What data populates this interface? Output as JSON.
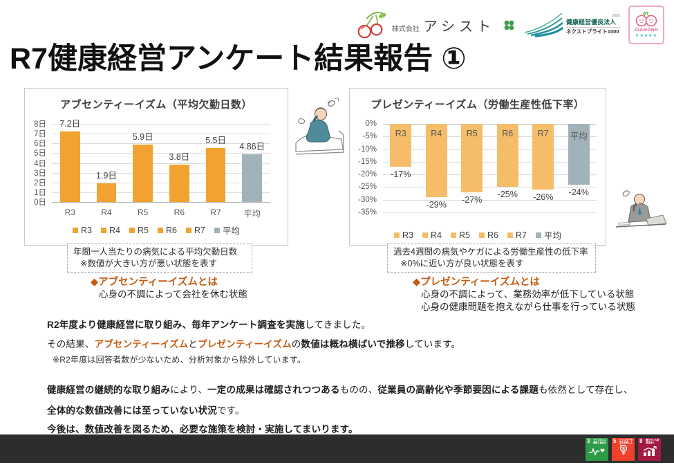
{
  "page": {
    "title": "R7健康経営アンケート結果報告 ①"
  },
  "logos": {
    "company_prefix": "株式会社",
    "company_name": "アシスト",
    "cert_year": "2025",
    "cert_name": "健康経営優良法人",
    "cert_sub": "ネクストブライト1000",
    "diamond_label": "DIAMOND",
    "diamond_stars": "★★★★★"
  },
  "chart_data": [
    {
      "type": "bar",
      "title": "アブセンティーイズム（平均欠勤日数）",
      "categories": [
        "R3",
        "R4",
        "R5",
        "R6",
        "R7",
        "平均"
      ],
      "values": [
        7.2,
        1.9,
        5.9,
        3.8,
        5.5,
        4.86
      ],
      "labels": [
        "7.2日",
        "1.9日",
        "5.9日",
        "3.8日",
        "5.5日",
        "4.86日"
      ],
      "ymin": 0,
      "ymax": 8,
      "yticks": [
        "8日",
        "7日",
        "6日",
        "5日",
        "4日",
        "3日",
        "2日",
        "1日",
        "0日"
      ],
      "legend": [
        "R3",
        "R4",
        "R5",
        "R6",
        "R7",
        "平均"
      ],
      "legend_position": "bottom",
      "grid": true,
      "bar_color": "#F2A230",
      "avg_color": "#A2B2BA"
    },
    {
      "type": "bar",
      "title": "プレゼンティーイズム（労働生産性低下率）",
      "categories": [
        "R3",
        "R4",
        "R5",
        "R6",
        "R7",
        "平均"
      ],
      "values": [
        -17,
        -29,
        -27,
        -25,
        -26,
        -24
      ],
      "labels": [
        "-17%",
        "-29%",
        "-27%",
        "-25%",
        "-26%",
        "-24%"
      ],
      "ymin": -35,
      "ymax": 0,
      "yticks": [
        "0%",
        "-5%",
        "-10%",
        "-15%",
        "-20%",
        "-25%",
        "-30%",
        "-35%"
      ],
      "legend": [
        "R3",
        "R4",
        "R5",
        "R6",
        "R7",
        "平均"
      ],
      "legend_position": "bottom",
      "grid": true,
      "bar_color": "#F5BD6A",
      "avg_color": "#A2B2BA"
    }
  ],
  "notes": {
    "left": {
      "line1": "年間一人当たりの病気による平均欠勤日数",
      "line2": "※数値が大きい方が悪い状態を表す"
    },
    "right": {
      "line1": "過去4週間の病気やケガによる労働生産性の低下率",
      "line2": "※0%に近い方が良い状態を表す"
    }
  },
  "definitions": {
    "left": {
      "title": "◆アブセンティーイズムとは",
      "lines": [
        "心身の不調によって会社を休む状態"
      ]
    },
    "right": {
      "title": "◆プレゼンティーイズムとは",
      "lines": [
        "心身の不調によって、業務効率が低下している状態",
        "心身の健康問題を抱えながら仕事を行っている状態"
      ]
    }
  },
  "body": {
    "p1": [
      {
        "text": "R2年度より健康経営に取り組み、毎年アンケート調査を実施",
        "bold": true
      },
      {
        "text": "してきました。"
      }
    ],
    "p2": [
      {
        "text": "その結果、"
      },
      {
        "text": "アブセンティーイズム",
        "accent": true
      },
      {
        "text": "と"
      },
      {
        "text": "プレゼンティーイズム",
        "accent": true
      },
      {
        "text": "の"
      },
      {
        "text": "数値は概ね横ばいで推移",
        "bold": true
      },
      {
        "text": "しています。"
      }
    ],
    "note": "※R2年度は回答者数が少ないため、分析対象から除外しています。",
    "p3": [
      {
        "text": "健康経営の継続的な取り組み",
        "bold": true
      },
      {
        "text": "により、"
      },
      {
        "text": "一定の成果は確認されつつある",
        "bold": true
      },
      {
        "text": "ものの、"
      },
      {
        "text": "従業員の高齢化や季節要因による課題",
        "bold": true
      },
      {
        "text": "も依然として存在し、"
      }
    ],
    "p4": [
      {
        "text": "全体的な数値改善には至っていない状況",
        "bold": true
      },
      {
        "text": "です。"
      }
    ],
    "p5": [
      {
        "text": "今後は、数値改善を図るため、必要な施策を検討・実施してまいります。",
        "bold": true
      }
    ]
  },
  "sdg": {
    "items": [
      {
        "num": "3",
        "label": "すべての人に健康と福祉を",
        "color": "#2E9B47"
      },
      {
        "num": "5",
        "label": "ジェンダー平等を実現しよう",
        "color": "#EF402B"
      },
      {
        "num": "8",
        "label": "働きがいも経済成長も",
        "color": "#A21942"
      }
    ]
  },
  "colors": {
    "accent_orange": "#C55A11",
    "bar_orange": "#F2A230",
    "bar_orange_light": "#F5BD6A",
    "bar_gray": "#A2B2BA",
    "footer_bar": "#2D2D2D"
  }
}
